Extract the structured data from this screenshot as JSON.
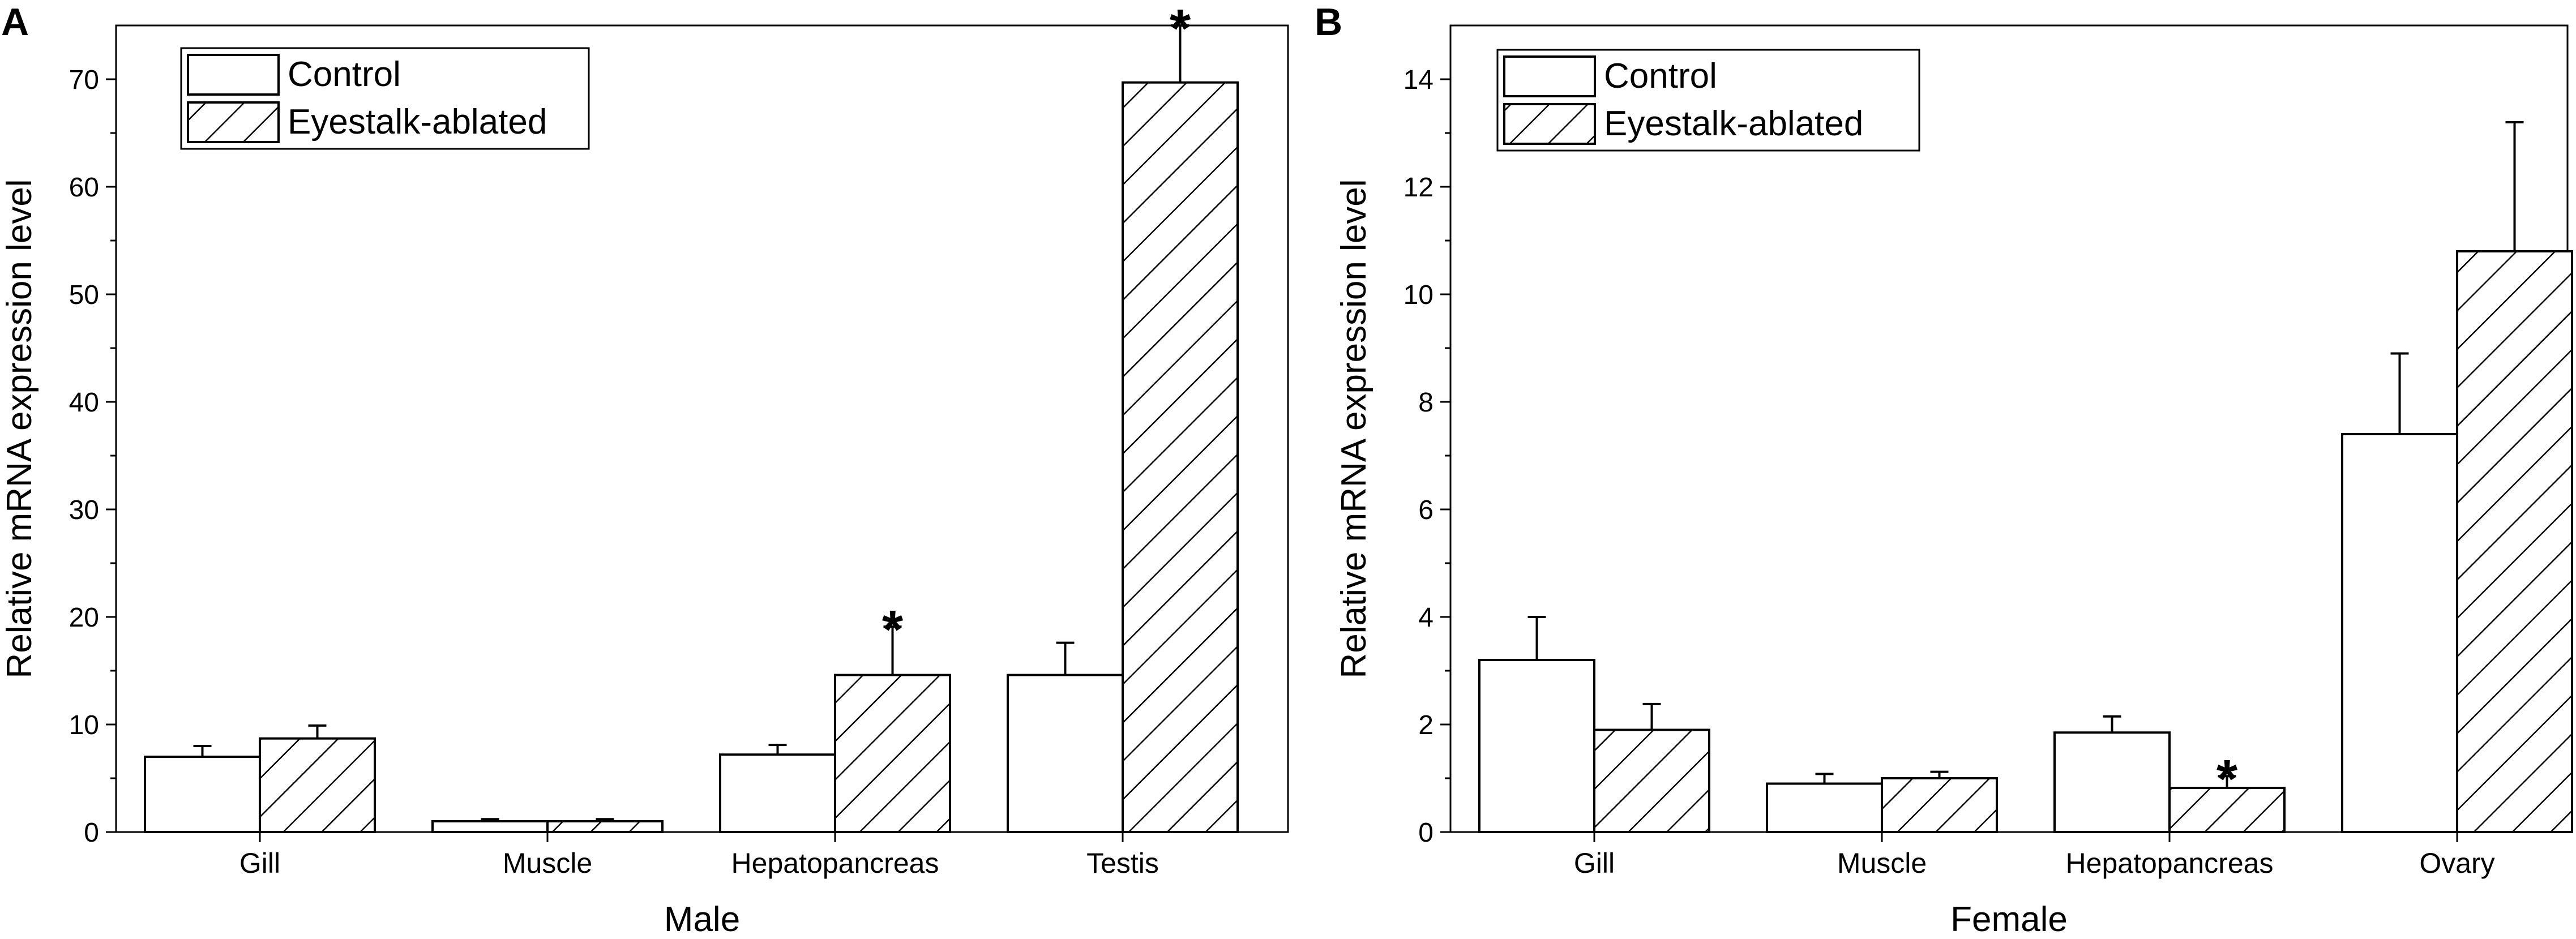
{
  "chart_data": [
    {
      "type": "bar",
      "panel": "A",
      "categories": [
        "Gill",
        "Muscle",
        "Hepatopancreas",
        "Testis"
      ],
      "series": [
        {
          "name": "Control",
          "pattern": "plain",
          "values": [
            7.0,
            1.0,
            7.2,
            14.6
          ],
          "errors": [
            1.0,
            0.2,
            0.9,
            3.0
          ],
          "significant": [
            false,
            false,
            false,
            false
          ]
        },
        {
          "name": "Eyestalk-ablated",
          "pattern": "hatched",
          "values": [
            8.7,
            1.0,
            14.6,
            69.7
          ],
          "errors": [
            1.2,
            0.2,
            4.5,
            5.3
          ],
          "significant": [
            false,
            false,
            true,
            true
          ]
        }
      ],
      "xlabel": "Male",
      "ylabel": "Relative mRNA expression level",
      "ylim": [
        0,
        75
      ],
      "yticks": [
        0,
        10,
        20,
        30,
        40,
        50,
        60,
        70
      ],
      "legend": "top-left",
      "significance_marker": "*"
    },
    {
      "type": "bar",
      "panel": "B",
      "categories": [
        "Gill",
        "Muscle",
        "Hepatopancreas",
        "Ovary"
      ],
      "series": [
        {
          "name": "Control",
          "pattern": "plain",
          "values": [
            3.2,
            0.9,
            1.85,
            7.4
          ],
          "errors": [
            0.8,
            0.18,
            0.3,
            1.5
          ],
          "significant": [
            false,
            false,
            false,
            false
          ]
        },
        {
          "name": "Eyestalk-ablated",
          "pattern": "hatched",
          "values": [
            1.9,
            1.0,
            0.82,
            10.8
          ],
          "errors": [
            0.48,
            0.12,
            0.22,
            2.4
          ],
          "significant": [
            false,
            false,
            true,
            false
          ]
        }
      ],
      "xlabel": "Female",
      "ylabel": "Relative mRNA expression level",
      "ylim": [
        0,
        15
      ],
      "yticks": [
        0,
        2,
        4,
        6,
        8,
        10,
        12,
        14
      ],
      "legend": "top-left",
      "significance_marker": "*"
    }
  ]
}
